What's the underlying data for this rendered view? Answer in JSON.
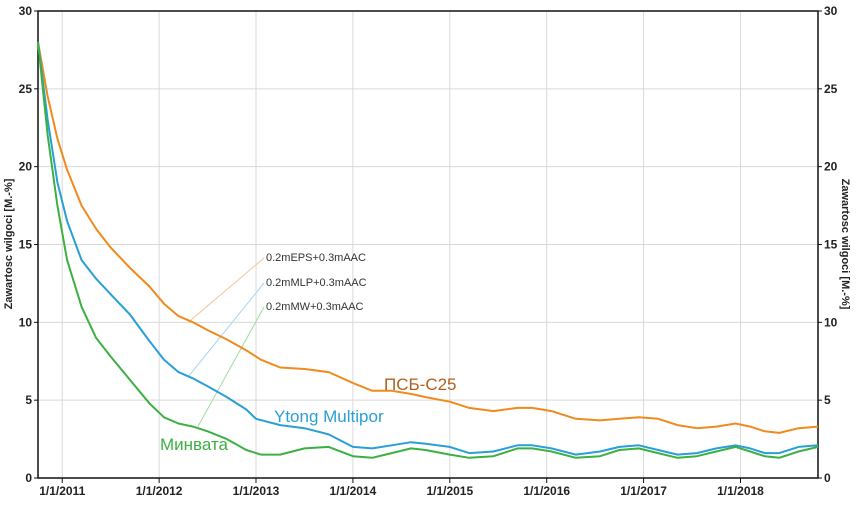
{
  "chart_data": {
    "type": "line",
    "ylabel_left": "Zawartosc wilgoci [M.-%]",
    "ylabel_right": "Zawartosc wilgoci [M.-%]",
    "ylim": [
      0,
      30
    ],
    "yticks": [
      "0",
      "5",
      "10",
      "15",
      "20",
      "25",
      "30"
    ],
    "xlim": [
      2010.75,
      2018.8
    ],
    "xticks": [
      {
        "x": 2011,
        "label": "1/1/2011"
      },
      {
        "x": 2012,
        "label": "1/1/2012"
      },
      {
        "x": 2013,
        "label": "1/1/2013"
      },
      {
        "x": 2014,
        "label": "1/1/2014"
      },
      {
        "x": 2015,
        "label": "1/1/2015"
      },
      {
        "x": 2016,
        "label": "1/1/2016"
      },
      {
        "x": 2017,
        "label": "1/1/2017"
      },
      {
        "x": 2018,
        "label": "1/1/2018"
      }
    ],
    "grid": true,
    "series": [
      {
        "name": "ПСБ-С25",
        "annotation": "0.2mEPS+0.3mAAC",
        "color": "#f08a1c",
        "x": [
          2010.75,
          2010.85,
          2010.95,
          2011.05,
          2011.2,
          2011.35,
          2011.5,
          2011.7,
          2011.9,
          2012.05,
          2012.2,
          2012.35,
          2012.5,
          2012.7,
          2012.9,
          2013.05,
          2013.25,
          2013.5,
          2013.75,
          2014.0,
          2014.2,
          2014.4,
          2014.6,
          2014.75,
          2015.0,
          2015.2,
          2015.45,
          2015.7,
          2015.85,
          2016.05,
          2016.3,
          2016.55,
          2016.75,
          2016.95,
          2017.15,
          2017.35,
          2017.55,
          2017.75,
          2017.95,
          2018.1,
          2018.25,
          2018.4,
          2018.6,
          2018.8
        ],
        "y": [
          28.0,
          24.5,
          21.8,
          19.8,
          17.5,
          16.0,
          14.8,
          13.5,
          12.3,
          11.2,
          10.4,
          10.0,
          9.5,
          8.9,
          8.2,
          7.6,
          7.1,
          7.0,
          6.8,
          6.1,
          5.6,
          5.6,
          5.4,
          5.2,
          4.9,
          4.5,
          4.3,
          4.5,
          4.5,
          4.3,
          3.8,
          3.7,
          3.8,
          3.9,
          3.8,
          3.4,
          3.2,
          3.3,
          3.5,
          3.3,
          3.0,
          2.9,
          3.2,
          3.3
        ]
      },
      {
        "name": "Ytong Multipor",
        "annotation": "0.2mMLP+0.3mAAC",
        "color": "#2a9fd6",
        "x": [
          2010.75,
          2010.85,
          2010.95,
          2011.05,
          2011.2,
          2011.35,
          2011.5,
          2011.7,
          2011.9,
          2012.05,
          2012.2,
          2012.35,
          2012.5,
          2012.7,
          2012.9,
          2013.0,
          2013.25,
          2013.5,
          2013.75,
          2014.0,
          2014.2,
          2014.4,
          2014.6,
          2014.75,
          2015.0,
          2015.2,
          2015.45,
          2015.7,
          2015.85,
          2016.05,
          2016.3,
          2016.55,
          2016.75,
          2016.95,
          2017.15,
          2017.35,
          2017.55,
          2017.75,
          2017.95,
          2018.1,
          2018.25,
          2018.4,
          2018.6,
          2018.8
        ],
        "y": [
          28.0,
          23.0,
          19.0,
          16.5,
          14.0,
          12.8,
          11.8,
          10.5,
          8.8,
          7.6,
          6.8,
          6.4,
          5.9,
          5.2,
          4.4,
          3.8,
          3.4,
          3.2,
          2.8,
          2.0,
          1.9,
          2.1,
          2.3,
          2.2,
          2.0,
          1.6,
          1.7,
          2.1,
          2.1,
          1.9,
          1.5,
          1.7,
          2.0,
          2.1,
          1.8,
          1.5,
          1.6,
          1.9,
          2.1,
          1.9,
          1.6,
          1.6,
          2.0,
          2.1
        ]
      },
      {
        "name": "Минвата",
        "annotation": "0.2mMW+0.3mAAC",
        "color": "#3cb043",
        "x": [
          2010.75,
          2010.85,
          2010.95,
          2011.05,
          2011.2,
          2011.35,
          2011.5,
          2011.7,
          2011.9,
          2012.05,
          2012.2,
          2012.35,
          2012.5,
          2012.7,
          2012.9,
          2013.05,
          2013.25,
          2013.5,
          2013.75,
          2014.0,
          2014.2,
          2014.4,
          2014.6,
          2014.75,
          2015.0,
          2015.2,
          2015.45,
          2015.7,
          2015.85,
          2016.05,
          2016.3,
          2016.55,
          2016.75,
          2016.95,
          2017.15,
          2017.35,
          2017.55,
          2017.75,
          2017.95,
          2018.1,
          2018.25,
          2018.4,
          2018.6,
          2018.8
        ],
        "y": [
          28.0,
          22.0,
          17.5,
          14.0,
          11.0,
          9.0,
          7.8,
          6.3,
          4.8,
          3.9,
          3.5,
          3.3,
          3.0,
          2.5,
          1.8,
          1.5,
          1.5,
          1.9,
          2.0,
          1.4,
          1.3,
          1.6,
          1.9,
          1.8,
          1.5,
          1.3,
          1.4,
          1.9,
          1.9,
          1.7,
          1.3,
          1.4,
          1.8,
          1.9,
          1.6,
          1.3,
          1.4,
          1.7,
          2.0,
          1.7,
          1.4,
          1.3,
          1.7,
          2.0
        ]
      }
    ]
  }
}
